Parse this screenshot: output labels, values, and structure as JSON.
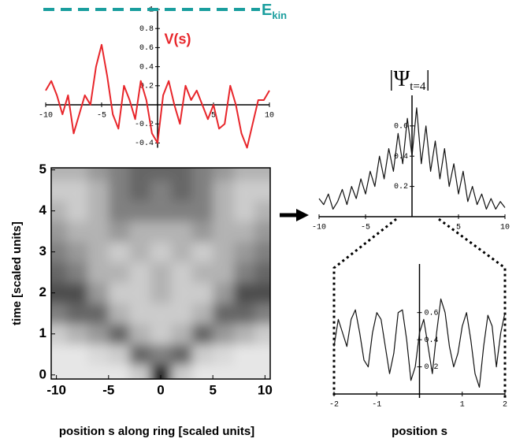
{
  "chart_data": [
    {
      "type": "line",
      "xlim": [
        -10,
        10
      ],
      "ylim": [
        -0.45,
        1
      ],
      "xticks": [
        -10,
        -5,
        5,
        10
      ],
      "yticks": [
        -0.4,
        -0.2,
        0.2,
        0.4,
        0.6,
        0.8,
        1
      ],
      "x": [
        -10,
        -9.5,
        -9,
        -8.5,
        -8,
        -7.5,
        -7,
        -6.5,
        -6,
        -5.5,
        -5,
        -4.5,
        -4,
        -3.5,
        -3,
        -2.5,
        -2,
        -1.5,
        -1,
        -0.5,
        0,
        0.5,
        1,
        1.5,
        2,
        2.5,
        3,
        3.5,
        4,
        4.5,
        5,
        5.5,
        6,
        6.5,
        7,
        7.5,
        8,
        8.5,
        9,
        9.5,
        10
      ],
      "series": [
        {
          "name": "V(s)",
          "color": "#e8262b",
          "values": [
            0.15,
            0.25,
            0.1,
            -0.1,
            0.1,
            -0.3,
            -0.1,
            0.1,
            0.0,
            0.4,
            0.63,
            0.3,
            -0.1,
            -0.25,
            0.2,
            0.05,
            -0.15,
            0.25,
            0.05,
            -0.3,
            -0.4,
            0.1,
            0.25,
            0.0,
            -0.2,
            0.2,
            0.05,
            0.15,
            0.0,
            -0.15,
            0.0,
            -0.25,
            -0.2,
            0.2,
            0.0,
            -0.3,
            -0.45,
            -0.2,
            0.05,
            0.05,
            0.15
          ]
        }
      ],
      "hline": {
        "value": 1,
        "label": "E",
        "label_sub": "kin",
        "color": "#1a9e9e"
      }
    },
    {
      "type": "heatmap",
      "xlim": [
        -10.5,
        10.5
      ],
      "ylim": [
        -0.1,
        5.05
      ],
      "xticks": [
        -10,
        -5,
        0,
        5,
        10
      ],
      "yticks": [
        0,
        1,
        2,
        3,
        4,
        5
      ],
      "x_label": "position s along ring [scaled units]",
      "y_label": "time [scaled units]",
      "x": [
        -10,
        -8,
        -6,
        -4,
        -2,
        0,
        2,
        4,
        6,
        8,
        10
      ],
      "y": [
        0,
        0.5,
        1,
        1.5,
        2,
        2.5,
        3,
        3.5,
        4,
        4.5,
        5
      ],
      "z": [
        [
          0.1,
          0.1,
          0.1,
          0.1,
          0.2,
          0.9,
          0.2,
          0.1,
          0.1,
          0.1,
          0.1
        ],
        [
          0.1,
          0.1,
          0.15,
          0.2,
          0.6,
          0.5,
          0.6,
          0.2,
          0.15,
          0.1,
          0.1
        ],
        [
          0.2,
          0.3,
          0.4,
          0.6,
          0.3,
          0.2,
          0.3,
          0.6,
          0.4,
          0.3,
          0.2
        ],
        [
          0.5,
          0.6,
          0.6,
          0.3,
          0.2,
          0.2,
          0.2,
          0.3,
          0.6,
          0.6,
          0.5
        ],
        [
          0.7,
          0.7,
          0.4,
          0.2,
          0.2,
          0.3,
          0.2,
          0.2,
          0.4,
          0.7,
          0.7
        ],
        [
          0.6,
          0.5,
          0.3,
          0.3,
          0.2,
          0.3,
          0.2,
          0.3,
          0.3,
          0.5,
          0.6
        ],
        [
          0.5,
          0.4,
          0.3,
          0.2,
          0.3,
          0.2,
          0.3,
          0.2,
          0.3,
          0.4,
          0.5
        ],
        [
          0.4,
          0.3,
          0.3,
          0.4,
          0.3,
          0.3,
          0.3,
          0.4,
          0.3,
          0.3,
          0.4
        ],
        [
          0.3,
          0.2,
          0.3,
          0.5,
          0.5,
          0.5,
          0.5,
          0.5,
          0.3,
          0.2,
          0.3
        ],
        [
          0.2,
          0.2,
          0.3,
          0.5,
          0.6,
          0.5,
          0.6,
          0.5,
          0.3,
          0.2,
          0.2
        ],
        [
          0.3,
          0.3,
          0.4,
          0.5,
          0.6,
          0.6,
          0.6,
          0.5,
          0.4,
          0.3,
          0.3
        ]
      ]
    },
    {
      "type": "line",
      "title": "|Ψ",
      "title_sub": "t=4",
      "title_end": "|",
      "xlim": [
        -10,
        10
      ],
      "ylim": [
        0,
        0.75
      ],
      "xticks": [
        -10,
        -5,
        5,
        10
      ],
      "yticks": [
        0.2,
        0.4,
        0.6
      ],
      "x": [
        -10,
        -9.5,
        -9,
        -8.5,
        -8,
        -7.5,
        -7,
        -6.5,
        -6,
        -5.5,
        -5,
        -4.5,
        -4,
        -3.5,
        -3,
        -2.5,
        -2,
        -1.5,
        -1,
        -0.5,
        0,
        0.5,
        1,
        1.5,
        2,
        2.5,
        3,
        3.5,
        4,
        4.5,
        5,
        5.5,
        6,
        6.5,
        7,
        7.5,
        8,
        8.5,
        9,
        9.5,
        10
      ],
      "series": [
        {
          "color": "#111111",
          "values": [
            0.12,
            0.08,
            0.15,
            0.05,
            0.1,
            0.18,
            0.08,
            0.2,
            0.12,
            0.25,
            0.15,
            0.3,
            0.2,
            0.4,
            0.25,
            0.45,
            0.3,
            0.55,
            0.35,
            0.65,
            0.4,
            0.72,
            0.35,
            0.6,
            0.3,
            0.5,
            0.25,
            0.45,
            0.2,
            0.35,
            0.15,
            0.3,
            0.1,
            0.2,
            0.08,
            0.15,
            0.05,
            0.12,
            0.05,
            0.1,
            0.06
          ]
        }
      ]
    },
    {
      "type": "line",
      "x_label": "position s",
      "xlim": [
        -2,
        2
      ],
      "ylim": [
        0,
        0.9
      ],
      "xticks": [
        -2,
        -1,
        1,
        2
      ],
      "yticks": [
        0.2,
        0.4,
        0.6
      ],
      "x": [
        -2,
        -1.9,
        -1.8,
        -1.7,
        -1.6,
        -1.5,
        -1.4,
        -1.3,
        -1.2,
        -1.1,
        -1,
        -0.9,
        -0.8,
        -0.7,
        -0.6,
        -0.5,
        -0.4,
        -0.3,
        -0.2,
        -0.1,
        0,
        0.1,
        0.2,
        0.3,
        0.4,
        0.5,
        0.6,
        0.7,
        0.8,
        0.9,
        1,
        1.1,
        1.2,
        1.3,
        1.4,
        1.5,
        1.6,
        1.7,
        1.8,
        1.9,
        2
      ],
      "series": [
        {
          "color": "#111111",
          "values": [
            0.35,
            0.55,
            0.45,
            0.35,
            0.55,
            0.62,
            0.45,
            0.25,
            0.2,
            0.45,
            0.6,
            0.55,
            0.35,
            0.15,
            0.3,
            0.6,
            0.62,
            0.4,
            0.1,
            0.2,
            0.45,
            0.55,
            0.35,
            0.15,
            0.45,
            0.7,
            0.6,
            0.35,
            0.2,
            0.3,
            0.5,
            0.6,
            0.4,
            0.15,
            0.05,
            0.35,
            0.58,
            0.5,
            0.2,
            0.45,
            0.6
          ]
        }
      ]
    }
  ]
}
